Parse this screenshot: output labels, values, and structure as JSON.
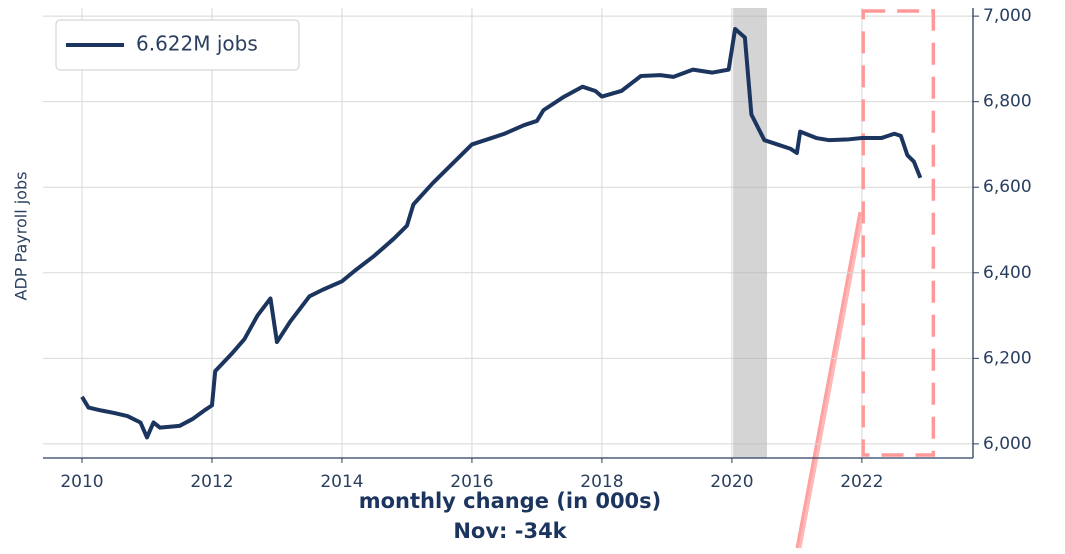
{
  "chart_data": {
    "type": "line",
    "y_axis_label": "ADP Payroll jobs",
    "annotation": "monthly change (in 000s)",
    "annotation_value": "Nov: -34k",
    "legend": "upper left",
    "grid": true,
    "y_axis_side": "right",
    "xlim": [
      2009.4,
      2023.71
    ],
    "ylim": [
      5967,
      7019
    ],
    "xticks": [
      2010,
      2012,
      2014,
      2016,
      2018,
      2020,
      2022
    ],
    "yticks": [
      {
        "value": 6000,
        "label": "6,000"
      },
      {
        "value": 6200,
        "label": "6,200"
      },
      {
        "value": 6400,
        "label": "6,400"
      },
      {
        "value": 6600,
        "label": "6,600"
      },
      {
        "value": 6800,
        "label": "6,800"
      },
      {
        "value": 7000,
        "label": "7,000"
      }
    ],
    "shaded_region": {
      "x": [
        2020.02,
        2020.54
      ],
      "color": "#b0b0b0"
    },
    "highlight_box": {
      "x": [
        2022.02,
        2023.1
      ],
      "color": "#ff9999"
    },
    "series": [
      {
        "name": "6.622M jobs",
        "color": "#1c355e",
        "x": [
          2010.0,
          2010.1,
          2010.3,
          2010.5,
          2010.7,
          2010.9,
          2011.0,
          2011.1,
          2011.2,
          2011.5,
          2011.7,
          2011.9,
          2012.0,
          2012.05,
          2012.3,
          2012.5,
          2012.7,
          2012.9,
          2013.0,
          2013.2,
          2013.5,
          2013.7,
          2014.0,
          2014.2,
          2014.5,
          2014.8,
          2015.0,
          2015.1,
          2015.4,
          2015.7,
          2016.0,
          2016.3,
          2016.5,
          2016.8,
          2017.0,
          2017.1,
          2017.4,
          2017.7,
          2017.9,
          2018.0,
          2018.3,
          2018.6,
          2018.9,
          2019.1,
          2019.4,
          2019.7,
          2019.95,
          2020.05,
          2020.2,
          2020.3,
          2020.5,
          2020.7,
          2020.9,
          2021.0,
          2021.05,
          2021.3,
          2021.5,
          2021.8,
          2022.0,
          2022.3,
          2022.5,
          2022.6,
          2022.7,
          2022.8,
          2022.9
        ],
        "values": [
          6110,
          6085,
          6078,
          6072,
          6065,
          6050,
          6015,
          6050,
          6038,
          6042,
          6058,
          6080,
          6090,
          6170,
          6210,
          6245,
          6300,
          6340,
          6238,
          6285,
          6345,
          6360,
          6380,
          6405,
          6440,
          6480,
          6510,
          6560,
          6610,
          6655,
          6700,
          6715,
          6725,
          6745,
          6755,
          6780,
          6810,
          6835,
          6825,
          6812,
          6825,
          6860,
          6862,
          6858,
          6875,
          6868,
          6875,
          6970,
          6950,
          6770,
          6710,
          6700,
          6690,
          6680,
          6730,
          6715,
          6710,
          6712,
          6715,
          6715,
          6725,
          6720,
          6675,
          6660,
          6622
        ]
      }
    ]
  }
}
